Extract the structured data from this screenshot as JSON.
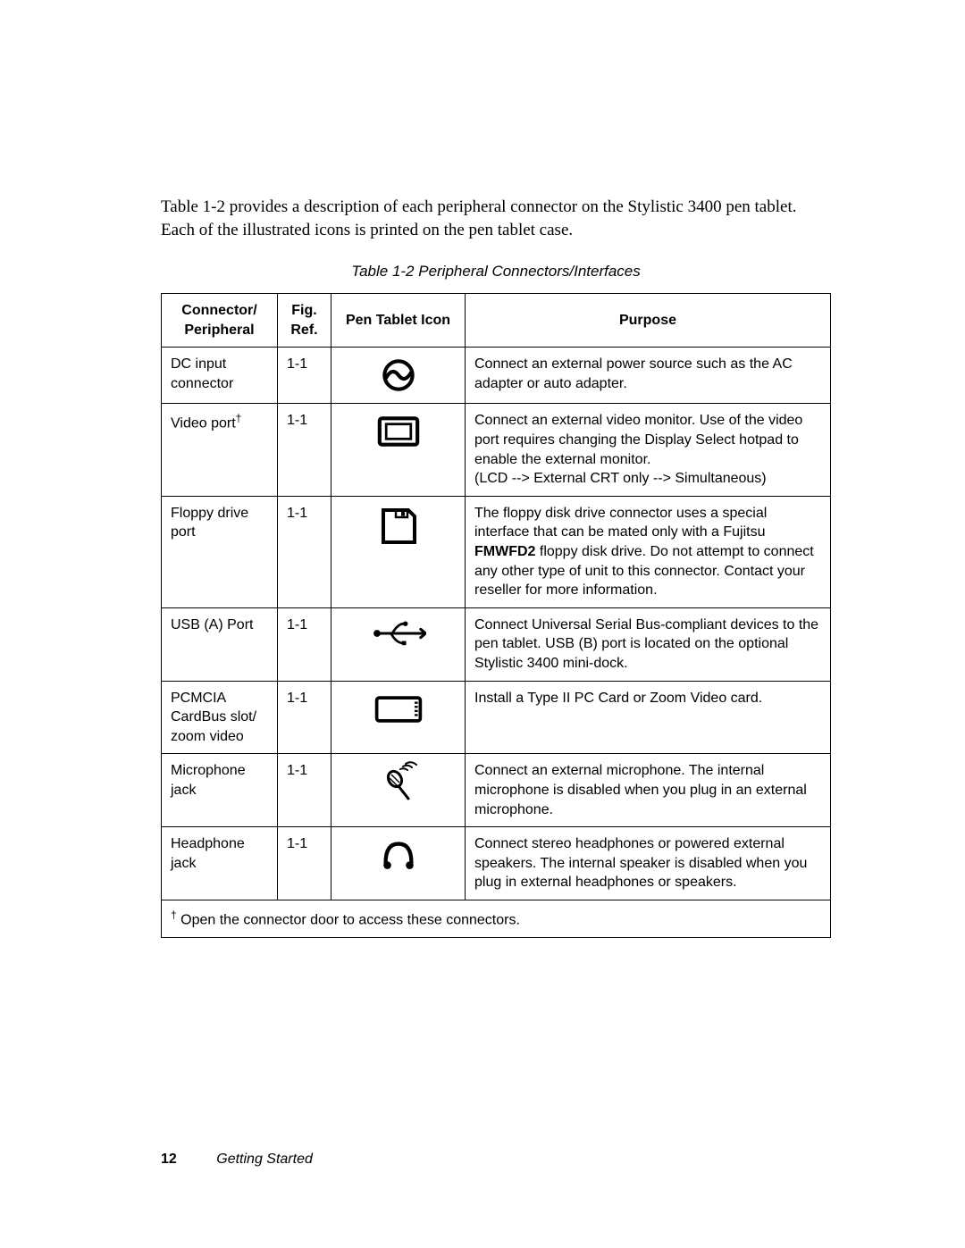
{
  "intro": "Table 1-2 provides a description of each peripheral connector on the Stylistic 3400 pen tablet. Each of the illustrated icons is printed on the pen tablet case.",
  "caption": "Table 1-2   Peripheral Connectors/Interfaces",
  "columns": {
    "c1a": "Connector/",
    "c1b": "Peripheral",
    "c2a": "Fig.",
    "c2b": "Ref.",
    "c3": "Pen Tablet Icon",
    "c4": "Purpose"
  },
  "rows": [
    {
      "name": "DC input connector",
      "dagger": false,
      "fig": "1-1",
      "purpose_html": "Connect an external power source such as the AC adapter or auto adapter."
    },
    {
      "name": "Video port",
      "dagger": true,
      "fig": "1-1",
      "purpose_html": "Connect an external video monitor. Use of the video port requires changing the Display Select hotpad to enable the external monitor.\n(LCD --> External CRT only --> Simultaneous)"
    },
    {
      "name": "Floppy drive port",
      "dagger": false,
      "fig": "1-1",
      "purpose_html": "The floppy disk drive connector uses a special interface that can be mated only with a Fujitsu <b>FMWFD2</b> floppy disk drive. Do not attempt to connect any other type of unit to this connector. Contact your reseller for more information."
    },
    {
      "name": "USB (A) Port",
      "dagger": false,
      "fig": "1-1",
      "purpose_html": "Connect Universal Serial Bus-compliant devices to the pen tablet. USB (B) port is located on the optional Stylistic 3400 mini-dock."
    },
    {
      "name": "PCMCIA CardBus slot/ zoom video",
      "dagger": false,
      "fig": "1-1",
      "purpose_html": "Install a Type II PC Card or Zoom Video card."
    },
    {
      "name": "Microphone jack",
      "dagger": false,
      "fig": "1-1",
      "purpose_html": "Connect an external microphone. The internal microphone is disabled when you plug in an external microphone."
    },
    {
      "name": "Headphone jack",
      "dagger": false,
      "fig": "1-1",
      "purpose_html": "Connect stereo headphones or powered external speakers. The internal speaker is disabled when you plug in external headphones or speakers."
    }
  ],
  "footnote": "Open the connector door to access these connectors.",
  "dagger_char": "†",
  "footer": {
    "page": "12",
    "section": "Getting Started"
  },
  "icons": {
    "dc": "<svg class='icon' width='46' height='46' viewBox='0 0 100 100'><circle cx='50' cy='50' r='34' fill='none' stroke='#000' stroke-width='9'/><path d='M20 56 Q35 30 50 50 Q65 70 80 44' fill='none' stroke='#000' stroke-width='9' stroke-linecap='round'/></svg>",
    "video": "<svg class='icon' width='56' height='46' viewBox='0 0 120 100'><rect x='14' y='18' width='92' height='64' rx='6' fill='none' stroke='#000' stroke-width='9'/><rect x='30' y='32' width='60' height='36' fill='none' stroke='#000' stroke-width='6'/></svg>",
    "floppy": "<svg class='icon' width='50' height='50' viewBox='0 0 100 100'><path d='M16 14 H72 L86 28 V86 H16 Z' fill='none' stroke='#000' stroke-width='8'/><rect x='44' y='14' width='26' height='16' fill='none' stroke='#000' stroke-width='5'/><rect x='56' y='17' width='8' height='10' fill='#000'/></svg>",
    "usb": "<svg class='icon' width='62' height='40' viewBox='0 0 160 100'><circle cx='18' cy='50' r='10' fill='#000'/><line x1='18' y1='50' x2='132' y2='50' stroke='#000' stroke-width='8'/><path d='M132 50 L156 50 M144 38 L158 50 L144 62' fill='none' stroke='#000' stroke-width='8' stroke-linecap='round'/><path d='M62 50 Q78 22 96 22' fill='none' stroke='#000' stroke-width='7'/><circle cx='100' cy='22' r='7' fill='#000'/><path d='M58 50 Q74 78 92 78' fill='none' stroke='#000' stroke-width='7'/><rect x='90' y='72' width='12' height='12' fill='#000'/></svg>",
    "pcmcia": "<svg class='icon' width='60' height='46' viewBox='0 0 130 100'><rect x='12' y='22' width='106' height='56' rx='6' fill='none' stroke='#000' stroke-width='8'/><line x1='104' y1='34' x2='112' y2='34' stroke='#000' stroke-width='5'/><line x1='104' y1='44' x2='112' y2='44' stroke='#000' stroke-width='5'/><line x1='104' y1='54' x2='112' y2='54' stroke='#000' stroke-width='5'/><line x1='104' y1='64' x2='112' y2='64' stroke='#000' stroke-width='5'/></svg>",
    "mic": "<svg class='icon' width='50' height='50' viewBox='0 0 100 100'><ellipse cx='42' cy='40' rx='14' ry='18' transform='rotate(-30 42 40)' fill='none' stroke='#000' stroke-width='6'/><line x1='34' y1='30' x2='52' y2='48' stroke='#000' stroke-width='3'/><line x1='30' y1='38' x2='48' y2='56' stroke='#000' stroke-width='3'/><line x1='50' y1='56' x2='72' y2='84' stroke='#000' stroke-width='6' stroke-linecap='round'/><path d='M54 18 Q62 14 70 20 M60 12 Q70 6 80 14 M66 6 Q78 -2 90 8' fill='none' stroke='#000' stroke-width='4' stroke-linecap='round'/></svg>",
    "headphone": "<svg class='icon' width='48' height='48' viewBox='0 0 100 100'><path d='M20 66 Q20 22 50 22 Q80 22 80 66' fill='none' stroke='#000' stroke-width='9' stroke-linecap='round'/><circle cx='24' cy='72' r='9' fill='#000'/><circle cx='76' cy='72' r='9' fill='#000'/></svg>"
  },
  "icon_order": [
    "dc",
    "video",
    "floppy",
    "usb",
    "pcmcia",
    "mic",
    "headphone"
  ]
}
